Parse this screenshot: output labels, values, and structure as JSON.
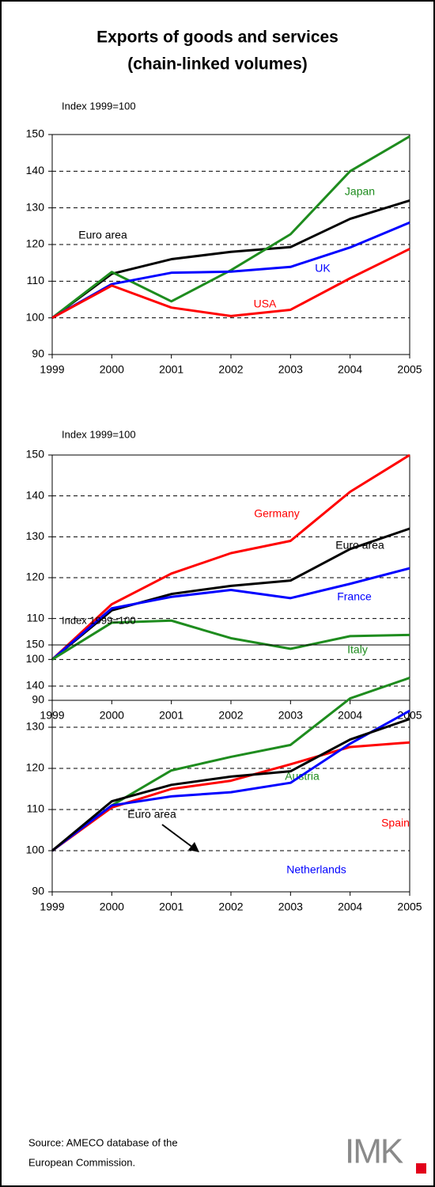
{
  "title": [
    "Exports of goods and services",
    "(chain-linked volumes)"
  ],
  "source": [
    "Source: AMECO database of the",
    "European Commission."
  ],
  "logo": "IMK",
  "chart_data": [
    {
      "type": "line",
      "y_label": "Index 1999=100",
      "x": [
        1999,
        2000,
        2001,
        2002,
        2003,
        2004,
        2005
      ],
      "xlim": [
        1999,
        2005
      ],
      "xticks": [
        1999,
        2000,
        2001,
        2002,
        2003,
        2004,
        2005
      ],
      "ylim": [
        90,
        150
      ],
      "yticks": [
        90,
        100,
        110,
        120,
        130,
        140,
        150
      ],
      "grid": true,
      "series": [
        {
          "name": "Euro area",
          "color": "#000000",
          "values": [
            100,
            112,
            116,
            118,
            119.3,
            127,
            132
          ]
        },
        {
          "name": "Japan",
          "color": "#1e8c1e",
          "values": [
            100,
            112.5,
            104.5,
            113,
            122.8,
            140,
            149.5
          ]
        },
        {
          "name": "UK",
          "color": "#0000ff",
          "values": [
            100,
            109.2,
            112.3,
            112.6,
            113.9,
            119.2,
            126
          ]
        },
        {
          "name": "USA",
          "color": "#ff0000",
          "values": [
            100,
            108.8,
            102.8,
            100.5,
            102.2,
            110.8,
            118.8
          ]
        }
      ]
    },
    {
      "type": "line",
      "y_label": "Index 1999=100",
      "x": [
        1999,
        2000,
        2001,
        2002,
        2003,
        2004,
        2005
      ],
      "xlim": [
        1999,
        2005
      ],
      "xticks": [
        1999,
        2000,
        2001,
        2002,
        2003,
        2004,
        2005
      ],
      "ylim": [
        90,
        150
      ],
      "yticks": [
        90,
        100,
        110,
        120,
        130,
        140,
        150
      ],
      "grid": true,
      "series": [
        {
          "name": "Euro area",
          "color": "#000000",
          "values": [
            100,
            112,
            116,
            118,
            119.3,
            127,
            132
          ]
        },
        {
          "name": "Germany",
          "color": "#ff0000",
          "values": [
            100,
            113.5,
            121,
            126,
            129,
            141,
            150
          ]
        },
        {
          "name": "France",
          "color": "#0000ff",
          "values": [
            100,
            112.5,
            115.3,
            117,
            115,
            118.5,
            122.3
          ]
        },
        {
          "name": "Italy",
          "color": "#1e8c1e",
          "values": [
            100,
            109,
            109.5,
            105.2,
            102.6,
            105.7,
            106
          ]
        }
      ]
    },
    {
      "type": "line",
      "y_label": "Index 1999=100",
      "x": [
        1999,
        2000,
        2001,
        2002,
        2003,
        2004,
        2005
      ],
      "xlim": [
        1999,
        2005
      ],
      "xticks": [
        1999,
        2000,
        2001,
        2002,
        2003,
        2004,
        2005
      ],
      "ylim": [
        90,
        150
      ],
      "yticks": [
        90,
        100,
        110,
        120,
        130,
        140,
        150
      ],
      "grid": true,
      "series": [
        {
          "name": "Austria",
          "color": "#1e8c1e",
          "values": [
            100,
            111,
            119.5,
            122.8,
            125.7,
            137,
            142
          ]
        },
        {
          "name": "Spain",
          "color": "#ff0000",
          "values": [
            100,
            110.5,
            115,
            117,
            121,
            125.2,
            126.3
          ]
        },
        {
          "name": "Netherlands",
          "color": "#0000ff",
          "values": [
            100,
            111,
            113.2,
            114.2,
            116.5,
            126,
            134
          ]
        },
        {
          "name": "Euro area",
          "color": "#000000",
          "values": [
            100,
            112,
            116,
            118,
            119.3,
            127,
            132
          ]
        }
      ]
    }
  ]
}
